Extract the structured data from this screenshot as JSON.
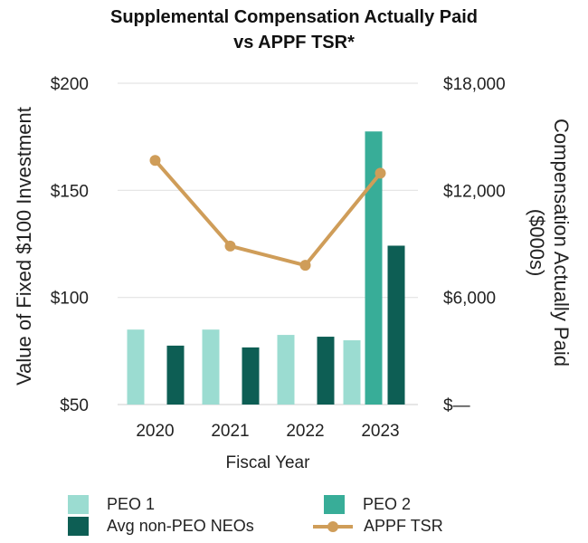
{
  "chart_data": {
    "type": "bar",
    "title": [
      "Supplemental Compensation Actually Paid",
      "vs APPF TSR*"
    ],
    "categories": [
      "2020",
      "2021",
      "2022",
      "2023"
    ],
    "xlabel": "Fiscal Year",
    "ylabel_left": "Value of Fixed $100 Investment",
    "ylabel_right": [
      "Compensation Actually Paid",
      "($000s)"
    ],
    "left_axis": {
      "min": 50,
      "max": 200,
      "ticks": [
        50,
        100,
        150,
        200
      ],
      "tick_labels": [
        "$50",
        "$100",
        "$150",
        "$200"
      ]
    },
    "right_axis": {
      "min": 0,
      "max": 18000,
      "ticks": [
        0,
        6000,
        12000,
        18000
      ],
      "tick_labels": [
        "$—",
        "$6,000",
        "$12,000",
        "$18,000"
      ]
    },
    "grid": true,
    "legend_position": "bottom",
    "series": [
      {
        "name": "PEO 1",
        "kind": "bar",
        "axis": "right",
        "color": "#9bdcd1",
        "values": [
          4200,
          4200,
          3900,
          3600
        ]
      },
      {
        "name": "PEO 2",
        "kind": "bar",
        "axis": "right",
        "color": "#38ad98",
        "values": [
          null,
          null,
          null,
          15300
        ]
      },
      {
        "name": "Avg non-PEO NEOs",
        "kind": "bar",
        "axis": "right",
        "color": "#0d5e54",
        "values": [
          3300,
          3200,
          3800,
          8900
        ]
      },
      {
        "name": "APPF TSR",
        "kind": "line",
        "axis": "left",
        "color": "#cf9d59",
        "values": [
          164,
          124,
          115,
          158
        ]
      }
    ]
  },
  "legend": [
    {
      "label": "PEO 1",
      "color": "#9bdcd1"
    },
    {
      "label": "PEO 2",
      "color": "#38ad98"
    },
    {
      "label": "Avg non-PEO NEOs",
      "color": "#0d5e54"
    },
    {
      "label": "APPF TSR",
      "color": "#cf9d59"
    }
  ]
}
